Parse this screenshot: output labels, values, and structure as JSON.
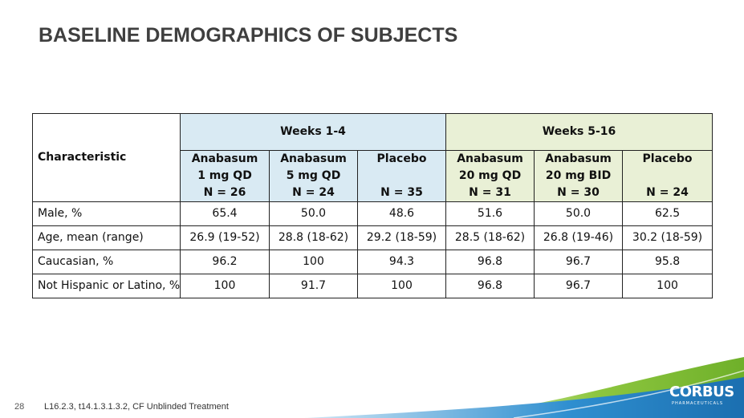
{
  "title": "BASELINE DEMOGRAPHICS OF SUBJECTS",
  "table": {
    "char_header": "Characteristic",
    "groups": [
      {
        "label": "Weeks 1-4",
        "color": "#d9eaf3"
      },
      {
        "label": "Weeks 5-16",
        "color": "#e9f0d6"
      }
    ],
    "columns": [
      {
        "line1": "Anabasum",
        "line2": "1 mg QD",
        "line3": "N = 26"
      },
      {
        "line1": "Anabasum",
        "line2": "5 mg QD",
        "line3": "N = 24"
      },
      {
        "line1": "Placebo",
        "line2": "",
        "line3": "N = 35"
      },
      {
        "line1": "Anabasum",
        "line2": "20 mg QD",
        "line3": "N = 31"
      },
      {
        "line1": "Anabasum",
        "line2": "20 mg BID",
        "line3": "N = 30"
      },
      {
        "line1": "Placebo",
        "line2": "",
        "line3": "N = 24"
      }
    ],
    "rows": [
      {
        "label": "Male, %",
        "values": [
          "65.4",
          "50.0",
          "48.6",
          "51.6",
          "50.0",
          "62.5"
        ]
      },
      {
        "label": "Age, mean (range)",
        "values": [
          "26.9 (19-52)",
          "28.8 (18-62)",
          "29.2 (18-59)",
          "28.5 (18-62)",
          "26.8 (19-46)",
          "30.2 (18-59)"
        ]
      },
      {
        "label": "Caucasian, %",
        "values": [
          "96.2",
          "100",
          "94.3",
          "96.8",
          "96.7",
          "95.8"
        ]
      },
      {
        "label": "Not Hispanic or Latino, %",
        "values": [
          "100",
          "91.7",
          "100",
          "96.8",
          "96.7",
          "100"
        ]
      }
    ]
  },
  "footer": {
    "page_number": "28",
    "footnote": "L16.2.3, t14.1.3.1.3.2, CF Unblinded Treatment",
    "logo_text": "CORBUS",
    "logo_subtext": "PHARMACEUTICALS"
  },
  "colors": {
    "title": "#3f3f3f",
    "weeks_1_4_fill": "#d9eaf3",
    "weeks_5_16_fill": "#e9f0d6",
    "wave_green": "#8dc63f",
    "wave_blue": "#1b75bb"
  }
}
